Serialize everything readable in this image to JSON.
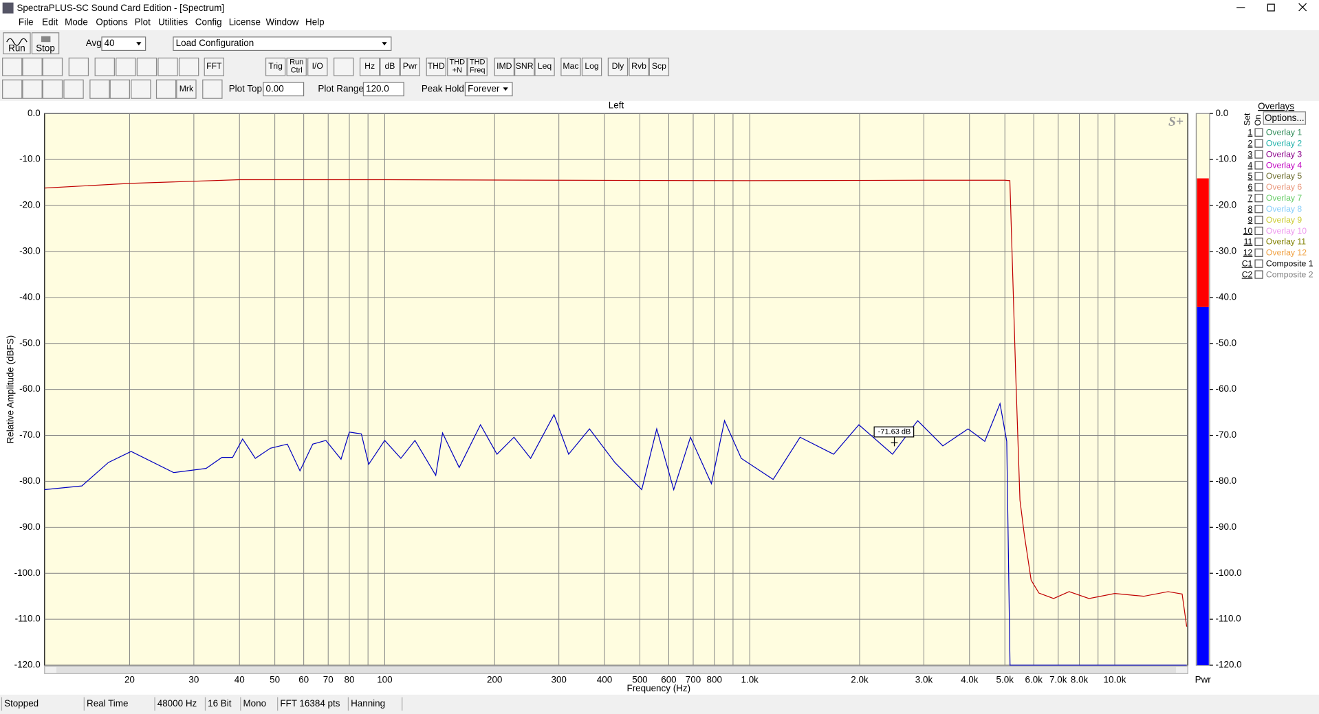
{
  "window": {
    "title": "SpectraPLUS-SC Sound Card Edition - [Spectrum]",
    "menu": [
      "File",
      "Edit",
      "Mode",
      "Options",
      "Plot",
      "Utilities",
      "Config",
      "License",
      "Window",
      "Help"
    ]
  },
  "toolbar": {
    "run": "Run",
    "stop": "Stop",
    "avg_label": "Avg",
    "avg": "40",
    "config": "Load Configuration",
    "buttons": [
      [
        "FFT"
      ],
      [
        "Trig"
      ],
      [
        "Run",
        "Ctrl"
      ],
      [
        "I/O"
      ],
      [
        "Hz"
      ],
      [
        "dB"
      ],
      [
        "Pwr"
      ],
      [
        "THD"
      ],
      [
        "THD",
        "+N"
      ],
      [
        "THD",
        "Freq"
      ],
      [
        "IMD"
      ],
      [
        "SNR"
      ],
      [
        "Leq"
      ],
      [
        "Mac"
      ],
      [
        "Log"
      ],
      [
        "Dly"
      ],
      [
        "Rvb"
      ],
      [
        "Scp"
      ]
    ],
    "marker": "Mrk",
    "plot_top_label": "Plot Top:",
    "plot_top": "0.00",
    "plot_range_label": "Plot Range:",
    "plot_range": "120.0",
    "peak_hold_label": "Peak Hold:",
    "peak_hold": "Forever"
  },
  "chart_data": {
    "type": "line",
    "title": "Left",
    "x_label": "Frequency (Hz)",
    "y_label": "Relative Amplitude (dBFS)",
    "logo": "S+",
    "x_scale": "log",
    "grid": true,
    "background": "#fffde0",
    "xlim": [
      11.7,
      15850
    ],
    "xticks": [
      20,
      30,
      40,
      50,
      60,
      70,
      80,
      100,
      200,
      300,
      400,
      500,
      600,
      700,
      800,
      {
        "value": 1000,
        "label": "1.0k"
      },
      {
        "value": 2000,
        "label": "2.0k"
      },
      {
        "value": 3000,
        "label": "3.0k"
      },
      {
        "value": 4000,
        "label": "4.0k"
      },
      {
        "value": 5000,
        "label": "5.0k"
      },
      {
        "value": 6000,
        "label": "6.0k"
      },
      {
        "value": 7000,
        "label": "7.0k"
      },
      {
        "value": 8000,
        "label": "8.0k"
      },
      {
        "value": 10000,
        "label": "10.0k"
      }
    ],
    "minor_xticks": [
      90,
      900,
      9000
    ],
    "ylim": [
      -120,
      0
    ],
    "yticks": [
      {
        "value": 0,
        "label": "0.0"
      },
      {
        "value": -10,
        "label": "-10.0"
      },
      {
        "value": -20,
        "label": "-20.0"
      },
      {
        "value": -30,
        "label": "-30.0"
      },
      {
        "value": -40,
        "label": "-40.0"
      },
      {
        "value": -50,
        "label": "-50.0"
      },
      {
        "value": -60,
        "label": "-60.0"
      },
      {
        "value": -70,
        "label": "-70.0"
      },
      {
        "value": -80,
        "label": "-80.0"
      },
      {
        "value": -90,
        "label": "-90.0"
      },
      {
        "value": -100,
        "label": "-100.0"
      },
      {
        "value": -110,
        "label": "-110.0"
      },
      {
        "value": -120,
        "label": "-120.0"
      }
    ],
    "series": [
      {
        "color": "#c00000",
        "x": [
          11.7,
          20,
          40,
          100,
          300,
          1000,
          3000,
          5000,
          5160,
          5230,
          5350,
          5500,
          5650,
          5900,
          6200,
          6800,
          7500,
          8500,
          10000,
          12000,
          14000,
          15300,
          15740
        ],
        "values": [
          -16.2,
          -15.2,
          -14.4,
          -14.4,
          -14.5,
          -14.6,
          -14.5,
          -14.5,
          -14.6,
          -30.2,
          -55.8,
          -84.1,
          -91.5,
          -101.5,
          -104.3,
          -105.5,
          -104,
          -105.5,
          -104.4,
          -105,
          -104,
          -104.5,
          -111.6
        ]
      },
      {
        "color": "#0000c0",
        "x": [
          11.7,
          14.8,
          17.5,
          20.2,
          26.4,
          32.4,
          35.8,
          38.3,
          40.8,
          44.2,
          48.6,
          54.1,
          58.6,
          63.5,
          69,
          75.9,
          80,
          86.3,
          90.4,
          100,
          110.7,
          121,
          138,
          144,
          160,
          183,
          203,
          226,
          251,
          291,
          319,
          364,
          427,
          506,
          556,
          619,
          688,
          785,
          853,
          948,
          1159,
          1374,
          1698,
          1991,
          2461,
          2884,
          3381,
          3963,
          4406,
          4849,
          5059,
          5164,
          15740
        ],
        "values": [
          -81.8,
          -81,
          -75.9,
          -73.5,
          -78.1,
          -77.2,
          -74.8,
          -74.8,
          -70.8,
          -75,
          -72.8,
          -71.9,
          -77.7,
          -71.9,
          -71.1,
          -75.2,
          -69.3,
          -69.7,
          -76.3,
          -71.1,
          -75,
          -71.1,
          -78.7,
          -69.5,
          -77,
          -67.7,
          -74.1,
          -70.4,
          -75,
          -65.5,
          -74.1,
          -68.6,
          -75.9,
          -81.8,
          -68.6,
          -81.8,
          -70.4,
          -80.5,
          -66.8,
          -75,
          -79.6,
          -70.4,
          -74.1,
          -67.7,
          -74.1,
          -66.8,
          -72.3,
          -68.6,
          -71.3,
          -63.1,
          -71.3,
          -120,
          -120
        ]
      }
    ],
    "annotation": {
      "text": "-71.63 dB",
      "x": 2490,
      "y": -71.63
    }
  },
  "meter": {
    "label": "Pwr",
    "peak": -14.1,
    "level": -42.1,
    "peak_color": "#ff0000",
    "level_color": "#0000ff"
  },
  "overlays": {
    "title": "Overlays",
    "options": "Options...",
    "set_header": "Set",
    "on_header": "On",
    "rows": [
      {
        "set": "1",
        "name": "Overlay 1",
        "color": "#2e8b57"
      },
      {
        "set": "2",
        "name": "Overlay 2",
        "color": "#20b2aa"
      },
      {
        "set": "3",
        "name": "Overlay 3",
        "color": "#8b008b"
      },
      {
        "set": "4",
        "name": "Overlay 4",
        "color": "#c000c0"
      },
      {
        "set": "5",
        "name": "Overlay 5",
        "color": "#6b6b2b"
      },
      {
        "set": "6",
        "name": "Overlay 6",
        "color": "#e9967a"
      },
      {
        "set": "7",
        "name": "Overlay 7",
        "color": "#66cc66"
      },
      {
        "set": "8",
        "name": "Overlay 8",
        "color": "#87cefa"
      },
      {
        "set": "9",
        "name": "Overlay 9",
        "color": "#cccc33"
      },
      {
        "set": "10",
        "name": "Overlay 10",
        "color": "#ee99ee"
      },
      {
        "set": "11",
        "name": "Overlay 11",
        "color": "#808000"
      },
      {
        "set": "12",
        "name": "Overlay 12",
        "color": "#f0a040"
      },
      {
        "set": "C1",
        "name": "Composite 1",
        "color": "#000000"
      },
      {
        "set": "C2",
        "name": "Composite 2",
        "color": "#808080"
      }
    ]
  },
  "status": [
    "Stopped",
    "Real Time",
    "48000 Hz",
    "16 Bit",
    "Mono",
    "FFT 16384 pts",
    "Hanning"
  ]
}
